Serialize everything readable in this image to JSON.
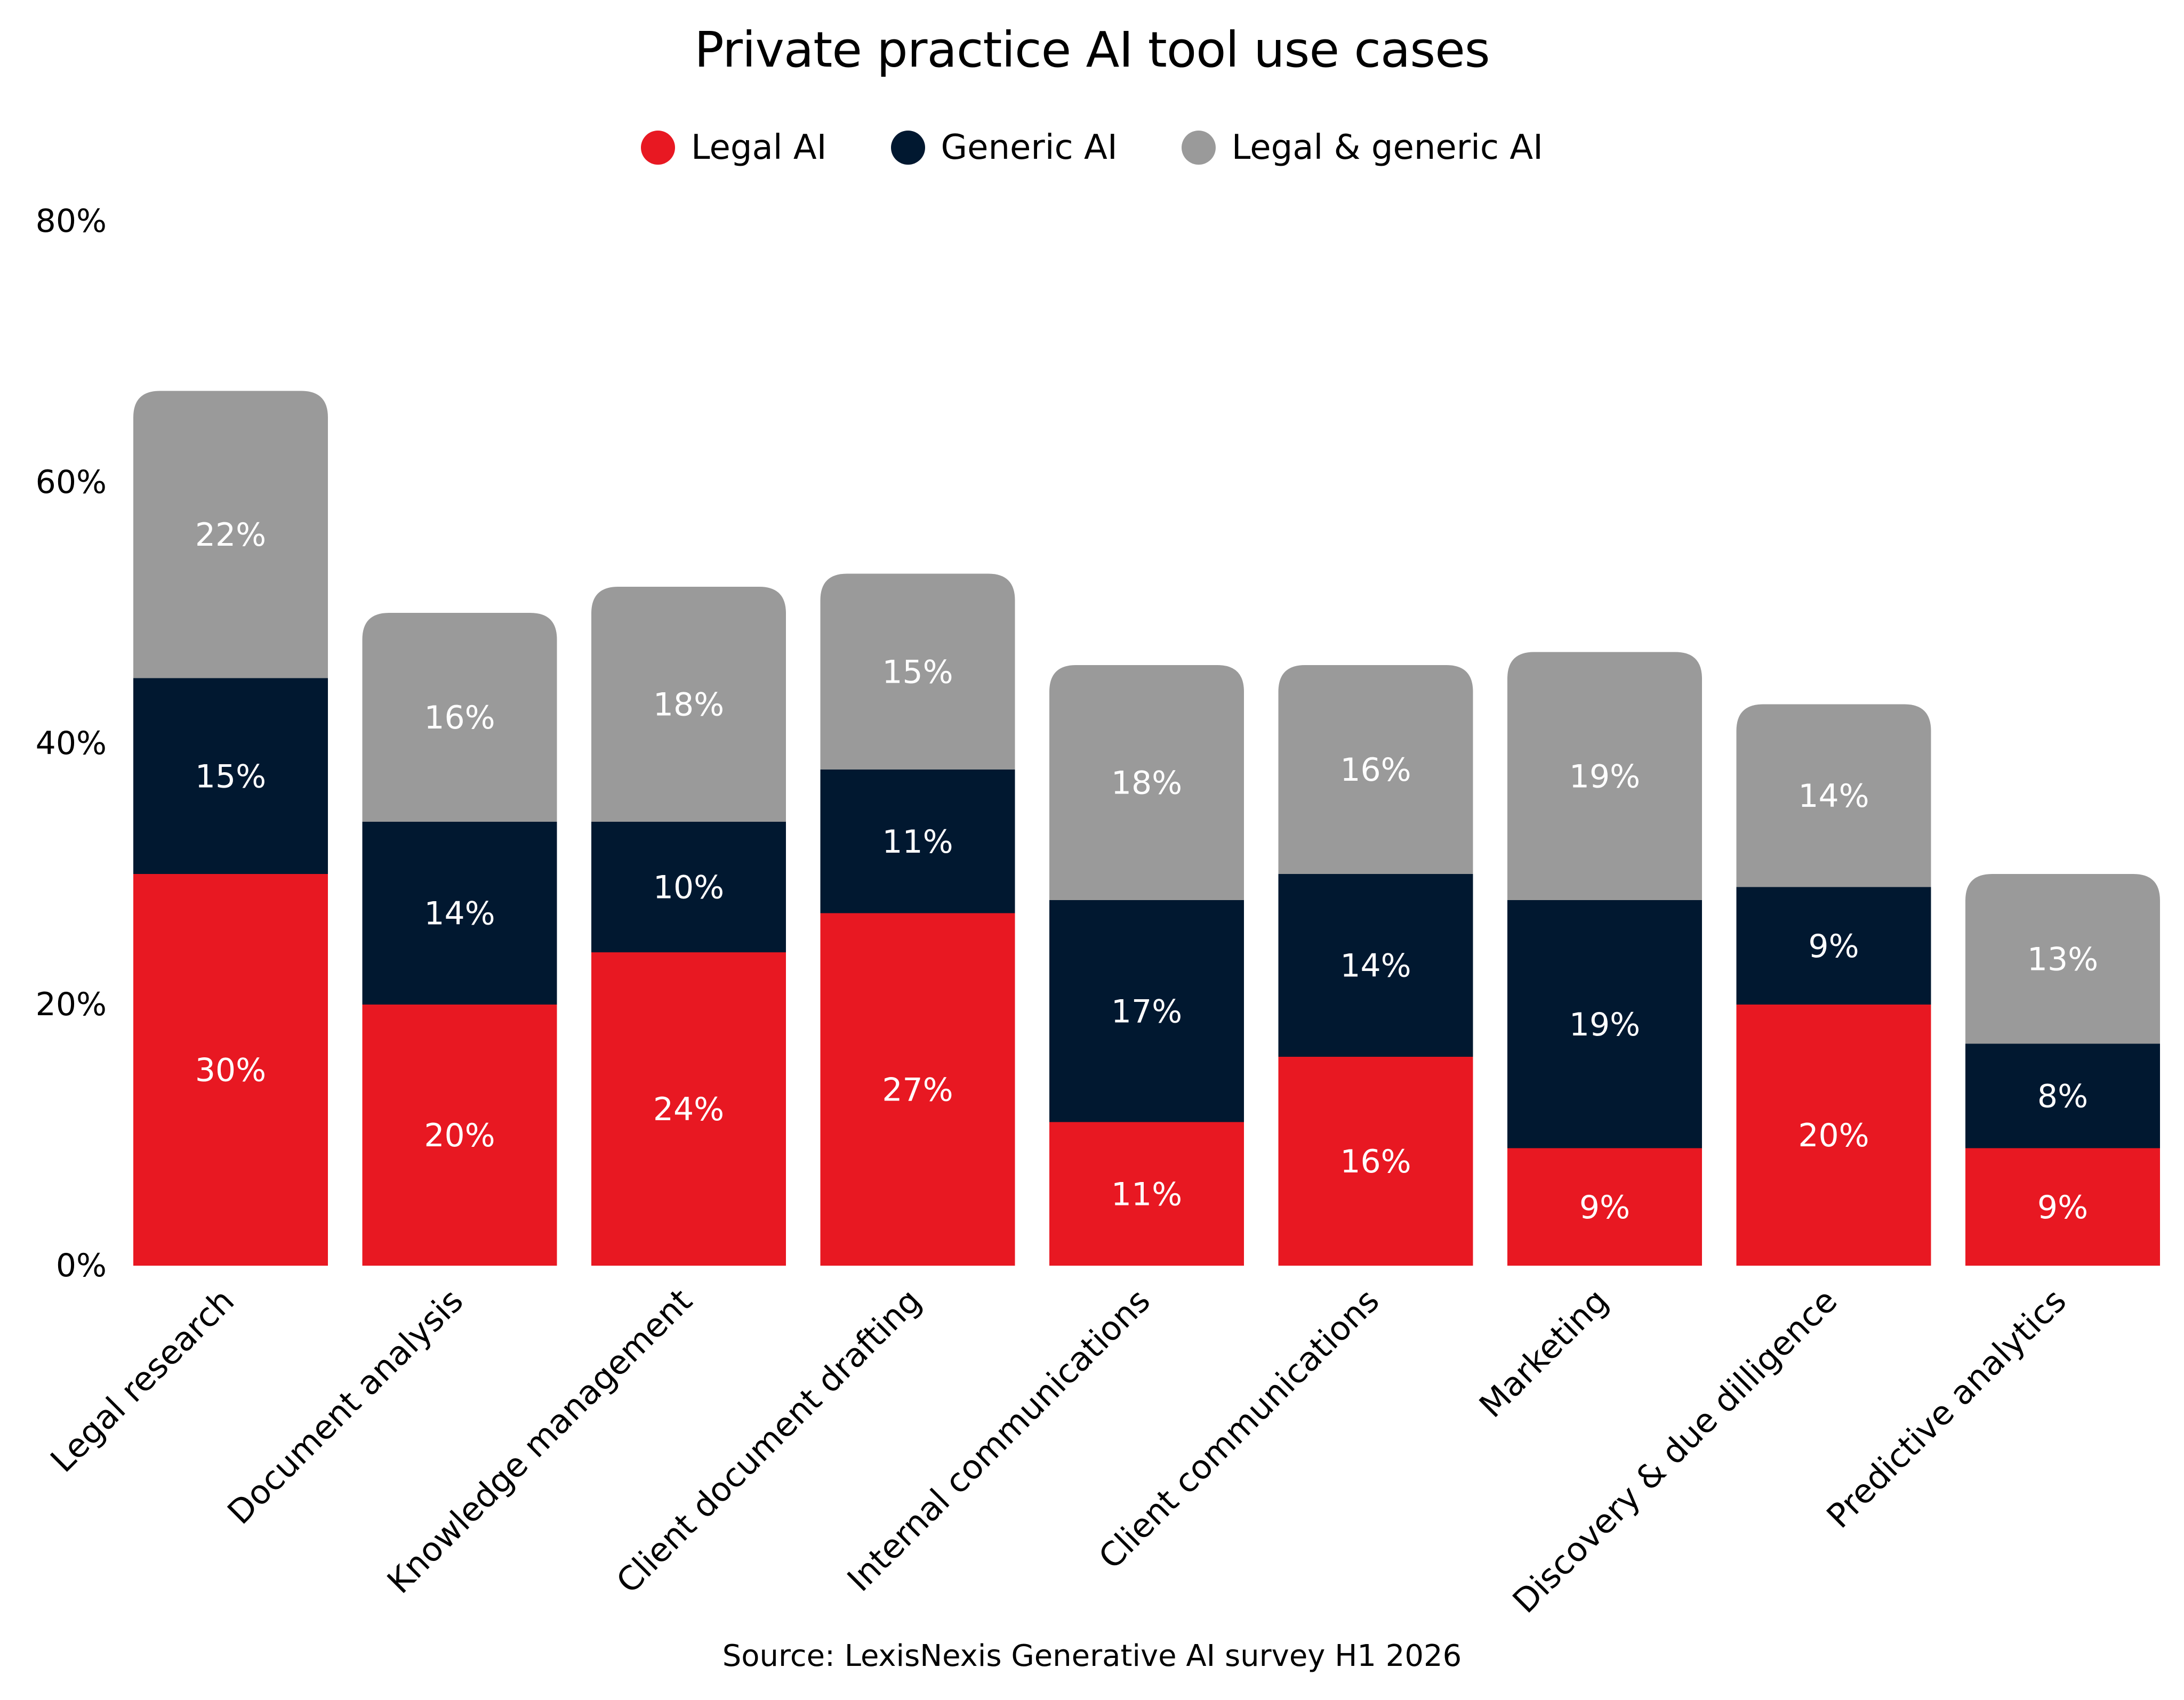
{
  "chart_data": {
    "type": "bar",
    "stacked": true,
    "title": "Private practice AI tool use cases",
    "xlabel": "",
    "ylabel": "",
    "ylim": [
      0,
      80
    ],
    "yticks": [
      0,
      20,
      40,
      60,
      80
    ],
    "ytick_labels": [
      "0%",
      "20%",
      "40%",
      "60%",
      "80%"
    ],
    "grid": false,
    "legend_position": "top-center",
    "categories": [
      "Legal research",
      "Document analysis",
      "Knowledge management",
      "Client document drafting",
      "Internal communications",
      "Client communications",
      "Marketing",
      "Discovery & due dilligence",
      "Predictive analytics"
    ],
    "series": [
      {
        "name": "Legal AI",
        "color": "#e81822",
        "values": [
          30,
          20,
          24,
          27,
          11,
          16,
          9,
          20,
          9
        ]
      },
      {
        "name": "Generic AI",
        "color": "#011830",
        "values": [
          15,
          14,
          10,
          11,
          17,
          14,
          19,
          9,
          8
        ]
      },
      {
        "name": "Legal & generic AI",
        "color": "#9a9a9a",
        "values": [
          22,
          16,
          18,
          15,
          18,
          16,
          19,
          14,
          13
        ]
      }
    ],
    "value_suffix": "%",
    "source": "Source: LexisNexis Generative AI survey H1 2026"
  }
}
